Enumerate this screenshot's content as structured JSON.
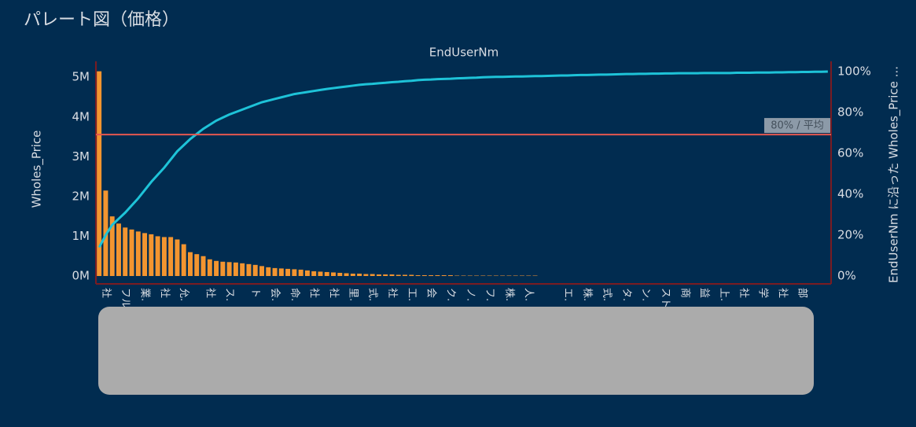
{
  "chart_data": {
    "type": "pareto",
    "title": "パレート図（価格）",
    "top_axis_title": "EndUserNm",
    "y_axis_title": "Wholes_Price",
    "y2_axis_title": "EndUserNm に沿った Wholes_Price ...",
    "categories": [
      null,
      "社",
      null,
      null,
      "フル",
      null,
      null,
      "業.",
      null,
      null,
      "社",
      null,
      null,
      "允.",
      null,
      null,
      null,
      "社",
      null,
      null,
      "ス.",
      null,
      null,
      null,
      "ト",
      null,
      null,
      "会.",
      null,
      null,
      "命.",
      null,
      null,
      "社",
      null,
      null,
      "社",
      null,
      null,
      "里.",
      null,
      null,
      "式.",
      null,
      null,
      "社",
      null,
      null,
      "工.",
      null,
      null,
      "会",
      null,
      null,
      "ク.",
      null,
      null,
      "ノ.",
      null,
      null,
      "フ.",
      null,
      null,
      "株.",
      null,
      null,
      "人.",
      null,
      null,
      null,
      null,
      null,
      "エ.",
      null,
      null,
      "株.",
      null,
      null,
      "式.",
      null,
      null,
      "タ.",
      null,
      null,
      "ン.",
      null,
      null,
      "スト",
      null,
      null,
      "商",
      null,
      null,
      "益",
      null,
      null,
      "上.",
      null,
      null,
      "社",
      null,
      null,
      "学",
      null,
      null,
      "社",
      null,
      null,
      "部",
      null,
      null,
      null,
      null
    ],
    "series": [
      {
        "name": "Wholes_Price",
        "color": "#f39530",
        "axis": "y",
        "values": [
          5.15,
          2.15,
          1.5,
          1.32,
          1.22,
          1.17,
          1.12,
          1.08,
          1.05,
          1.0,
          0.98,
          0.98,
          0.92,
          0.8,
          0.6,
          0.55,
          0.5,
          0.42,
          0.38,
          0.36,
          0.35,
          0.34,
          0.32,
          0.3,
          0.28,
          0.25,
          0.22,
          0.2,
          0.19,
          0.18,
          0.17,
          0.16,
          0.14,
          0.12,
          0.11,
          0.1,
          0.09,
          0.08,
          0.07,
          0.06,
          0.06,
          0.05,
          0.05,
          0.04,
          0.04,
          0.04,
          0.03,
          0.03,
          0.03,
          0.02,
          0.02,
          0.02,
          0.02,
          0.02,
          0.02,
          0.01,
          0.01,
          0.01,
          0.01,
          0.01,
          0.01,
          0.01,
          0.01,
          0.01,
          0.01,
          0.01,
          0.01,
          0.01,
          0,
          0,
          0,
          0,
          0,
          0,
          0,
          0,
          0,
          0,
          0,
          0,
          0,
          0,
          0,
          0,
          0,
          0,
          0,
          0,
          0,
          0,
          0,
          0,
          0,
          0,
          0,
          0,
          0,
          0,
          0,
          0,
          0,
          0,
          0,
          0,
          0,
          0,
          0,
          0,
          0,
          0,
          0,
          0,
          0
        ]
      },
      {
        "name": "EndUserNm に沿った Wholes_Price",
        "color": "#1ec3d8",
        "axis": "y2",
        "values": [
          14,
          20,
          25,
          28,
          31,
          34.5,
          38,
          42,
          46,
          49.5,
          53,
          57,
          61,
          64,
          67,
          69.5,
          72,
          74,
          76,
          77.5,
          79,
          80.2,
          81.4,
          82.6,
          83.8,
          85,
          85.8,
          86.6,
          87.4,
          88.2,
          89,
          89.5,
          90,
          90.5,
          91,
          91.5,
          91.9,
          92.3,
          92.7,
          93.1,
          93.5,
          93.8,
          94,
          94.3,
          94.5,
          94.8,
          95,
          95.3,
          95.5,
          95.8,
          96,
          96.1,
          96.3,
          96.4,
          96.5,
          96.7,
          96.8,
          96.9,
          97,
          97.2,
          97.3,
          97.4,
          97.4,
          97.5,
          97.6,
          97.6,
          97.7,
          97.8,
          97.8,
          97.9,
          98,
          98.1,
          98.1,
          98.2,
          98.3,
          98.3,
          98.4,
          98.5,
          98.5,
          98.6,
          98.7,
          98.8,
          98.8,
          98.9,
          98.9,
          99,
          99,
          99.1,
          99.1,
          99.2,
          99.2,
          99.2,
          99.2,
          99.3,
          99.3,
          99.3,
          99.3,
          99.3,
          99.4,
          99.4,
          99.4,
          99.5,
          99.5,
          99.5,
          99.6,
          99.6,
          99.7,
          99.7,
          99.8,
          99.8,
          99.9,
          99.9,
          100
        ]
      }
    ],
    "reference_line": {
      "label": "80% / 平均",
      "value": 69.2,
      "axis": "y2",
      "color": "#e5574f"
    },
    "ylim": [
      0,
      5.4
    ],
    "yticks": [
      {
        "value": 0,
        "label": "0M"
      },
      {
        "value": 1,
        "label": "1M"
      },
      {
        "value": 2,
        "label": "2M"
      },
      {
        "value": 3,
        "label": "3M"
      },
      {
        "value": 4,
        "label": "4M"
      },
      {
        "value": 5,
        "label": "5M"
      }
    ],
    "y2lim": [
      0,
      105
    ],
    "y2ticks": [
      {
        "value": 0,
        "label": "0%"
      },
      {
        "value": 20,
        "label": "20%"
      },
      {
        "value": 40,
        "label": "40%"
      },
      {
        "value": 60,
        "label": "60%"
      },
      {
        "value": 80,
        "label": "80%"
      },
      {
        "value": 100,
        "label": "100%"
      }
    ]
  }
}
